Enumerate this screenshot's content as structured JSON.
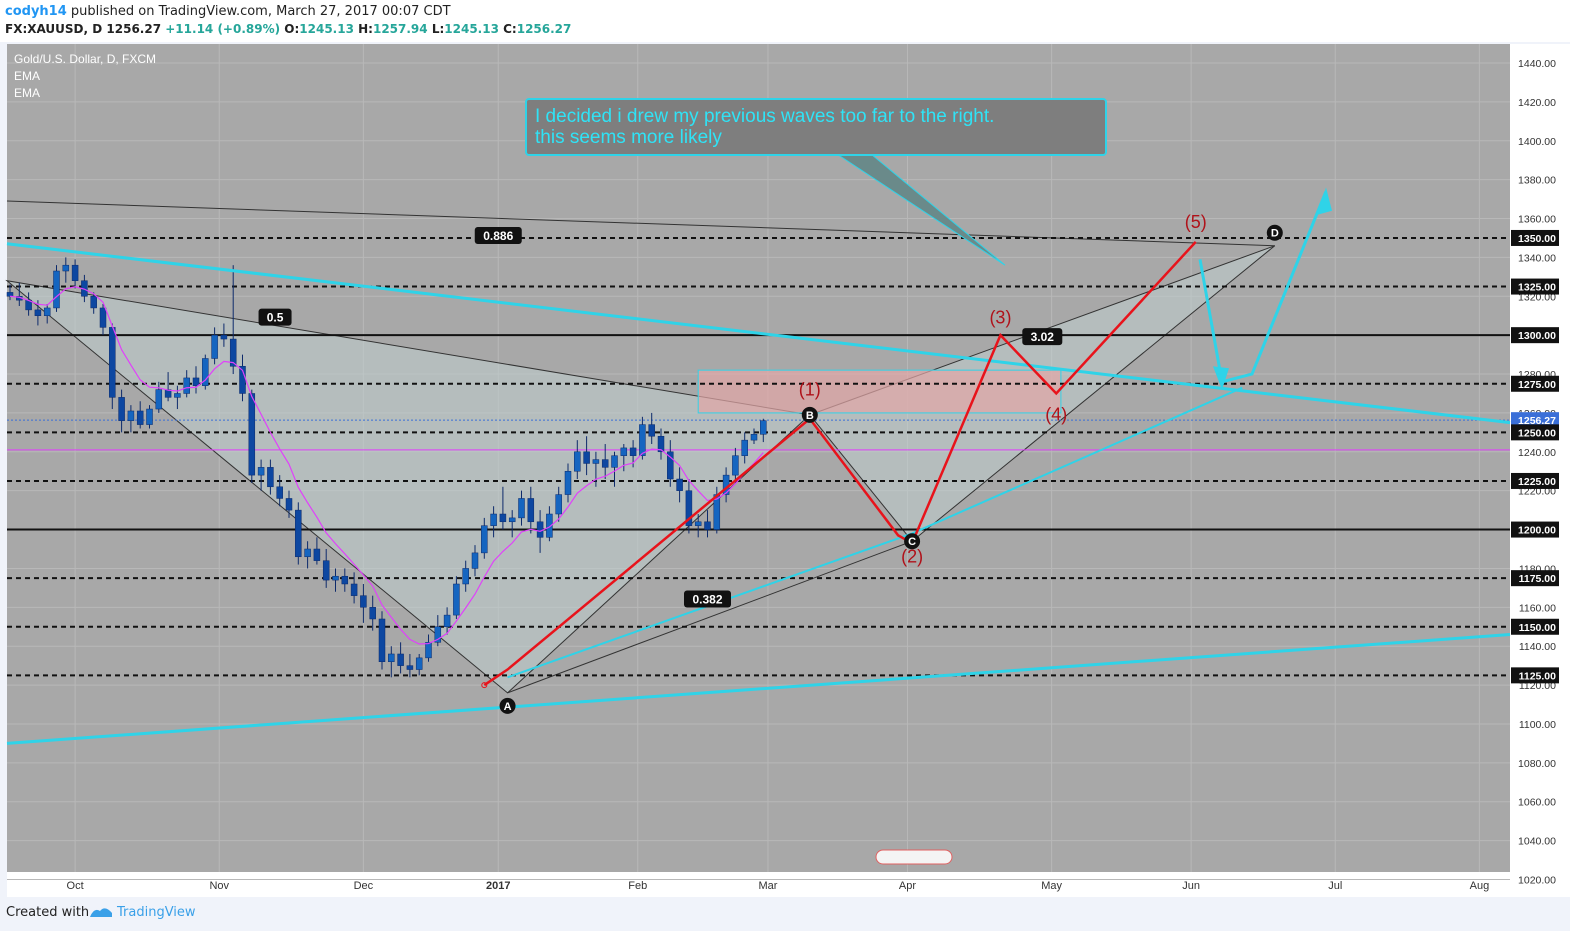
{
  "header": {
    "author": "codyh14",
    "published_text": "published on TradingView.com, March 27, 2017 00:07 CDT",
    "symbol": "FX:XAUUSD, D",
    "last": "1256.27",
    "change": "+11.14 (+0.89%)",
    "o_label": "O:",
    "o_value": "1245.13",
    "h_label": "H:",
    "h_value": "1257.94",
    "l_label": "L:",
    "l_value": "1245.13",
    "c_label": "C:",
    "c_value": "1256.27"
  },
  "legend": {
    "instrument": "Gold/U.S. Dollar, D, FXCM",
    "ind1": "EMA",
    "ind2": "EMA"
  },
  "annotation": {
    "line1": "I decided i drew my previous waves too far to the right.",
    "line2": "this seems more likely"
  },
  "footer": {
    "created_with": "Created with",
    "brand": "TradingView"
  },
  "colors": {
    "chart_bg": "#a8a8a8",
    "candle_up": "#1565c0",
    "candle_down": "#1565c0",
    "wave_red": "#e8131b",
    "trend_cyan": "#2fd3e8",
    "ema_magenta": "#e040fb"
  },
  "chart_data": {
    "type": "candlestick",
    "title": "Gold/U.S. Dollar, D, FXCM",
    "y_axis_ticks": [
      "1440.00",
      "1420.00",
      "1400.00",
      "1380.00",
      "1360.00",
      "1340.00",
      "1320.00",
      "1300.00",
      "1280.00",
      "1260.00",
      "1240.00",
      "1220.00",
      "1200.00",
      "1180.00",
      "1160.00",
      "1140.00",
      "1120.00",
      "1100.00",
      "1080.00",
      "1060.00",
      "1040.00",
      "1020.00"
    ],
    "y_axis_tick_values": [
      1440,
      1420,
      1400,
      1380,
      1360,
      1340,
      1320,
      1300,
      1280,
      1260,
      1240,
      1220,
      1200,
      1180,
      1160,
      1140,
      1120,
      1100,
      1080,
      1060,
      1040,
      1020
    ],
    "ylim": [
      1014,
      1454
    ],
    "x_axis_labels": [
      "Oct",
      "Nov",
      "Dec",
      "2017",
      "Feb",
      "Mar",
      "Apr",
      "May",
      "Jun",
      "Jul",
      "Aug"
    ],
    "x_axis_day_index": [
      14,
      45,
      76,
      105,
      135,
      163,
      193,
      224,
      254,
      285,
      316
    ],
    "level_labels": [
      "1350.00",
      "1325.00",
      "1300.00",
      "1275.00",
      "1256.27",
      "1250.00",
      "1225.00",
      "1200.00",
      "1175.00",
      "1150.00",
      "1125.00"
    ],
    "levels": [
      {
        "price": 1350,
        "style": "dashed"
      },
      {
        "price": 1325,
        "style": "dashed"
      },
      {
        "price": 1300,
        "style": "solid"
      },
      {
        "price": 1275,
        "style": "dashed"
      },
      {
        "price": 1250,
        "style": "dashed"
      },
      {
        "price": 1225,
        "style": "dashed"
      },
      {
        "price": 1200,
        "style": "solid"
      },
      {
        "price": 1175,
        "style": "dashed"
      },
      {
        "price": 1150,
        "style": "dashed"
      },
      {
        "price": 1125,
        "style": "dashed"
      }
    ],
    "last_price": 1256.27,
    "fib_labels": [
      {
        "text": "0.886",
        "day": 105,
        "price": 1351
      },
      {
        "text": "0.5",
        "day": 57,
        "price": 1309
      },
      {
        "text": "3.02",
        "day": 222,
        "price": 1299
      },
      {
        "text": "0.382",
        "day": 150,
        "price": 1164
      }
    ],
    "pattern_points": [
      {
        "text": "A",
        "day": 107,
        "price": 1116
      },
      {
        "text": "B",
        "day": 172,
        "price": 1259
      },
      {
        "text": "C",
        "day": 194,
        "price": 1194
      },
      {
        "text": "D",
        "day": 272,
        "price": 1346
      }
    ],
    "wave_labels": [
      {
        "text": "(1)",
        "day": 172,
        "price": 1269
      },
      {
        "text": "(2)",
        "day": 194,
        "price": 1183
      },
      {
        "text": "(3)",
        "day": 213,
        "price": 1306
      },
      {
        "text": "(4)",
        "day": 225,
        "price": 1256
      },
      {
        "text": "(5)",
        "day": 255,
        "price": 1355
      }
    ],
    "wave_path": [
      {
        "day": 102,
        "price": 1120
      },
      {
        "day": 107,
        "price": 1128
      },
      {
        "day": 172,
        "price": 1257
      },
      {
        "day": 191,
        "price": 1197
      },
      {
        "day": 194,
        "price": 1193
      },
      {
        "day": 213,
        "price": 1300
      },
      {
        "day": 225,
        "price": 1270
      },
      {
        "day": 255,
        "price": 1348
      }
    ],
    "candles_approx": [
      [
        0,
        1322,
        1326,
        1318,
        1320
      ],
      [
        2,
        1320,
        1327,
        1315,
        1318
      ],
      [
        4,
        1318,
        1322,
        1310,
        1313
      ],
      [
        6,
        1313,
        1318,
        1305,
        1310
      ],
      [
        8,
        1310,
        1316,
        1306,
        1314
      ],
      [
        10,
        1314,
        1336,
        1312,
        1333
      ],
      [
        12,
        1333,
        1340,
        1327,
        1336
      ],
      [
        14,
        1336,
        1339,
        1324,
        1328
      ],
      [
        16,
        1328,
        1331,
        1317,
        1320
      ],
      [
        18,
        1320,
        1322,
        1311,
        1314
      ],
      [
        20,
        1314,
        1316,
        1300,
        1304
      ],
      [
        22,
        1304,
        1306,
        1262,
        1268
      ],
      [
        24,
        1268,
        1272,
        1250,
        1256
      ],
      [
        26,
        1256,
        1264,
        1250,
        1261
      ],
      [
        28,
        1261,
        1266,
        1252,
        1254
      ],
      [
        30,
        1254,
        1264,
        1252,
        1262
      ],
      [
        32,
        1262,
        1276,
        1260,
        1272
      ],
      [
        34,
        1272,
        1281,
        1266,
        1268
      ],
      [
        36,
        1268,
        1274,
        1262,
        1270
      ],
      [
        38,
        1270,
        1282,
        1268,
        1278
      ],
      [
        40,
        1278,
        1284,
        1270,
        1274
      ],
      [
        42,
        1274,
        1290,
        1272,
        1288
      ],
      [
        44,
        1288,
        1304,
        1285,
        1300
      ],
      [
        46,
        1300,
        1306,
        1294,
        1298
      ],
      [
        48,
        1298,
        1336,
        1280,
        1284
      ],
      [
        50,
        1284,
        1290,
        1266,
        1270
      ],
      [
        52,
        1270,
        1272,
        1224,
        1228
      ],
      [
        54,
        1228,
        1236,
        1220,
        1232
      ],
      [
        56,
        1232,
        1236,
        1218,
        1222
      ],
      [
        58,
        1222,
        1228,
        1212,
        1216
      ],
      [
        60,
        1216,
        1220,
        1206,
        1210
      ],
      [
        62,
        1210,
        1214,
        1182,
        1186
      ],
      [
        64,
        1186,
        1194,
        1180,
        1190
      ],
      [
        66,
        1190,
        1196,
        1182,
        1184
      ],
      [
        68,
        1184,
        1190,
        1170,
        1174
      ],
      [
        70,
        1174,
        1180,
        1168,
        1176
      ],
      [
        72,
        1176,
        1180,
        1168,
        1172
      ],
      [
        74,
        1172,
        1178,
        1162,
        1166
      ],
      [
        76,
        1166,
        1172,
        1152,
        1160
      ],
      [
        78,
        1160,
        1166,
        1148,
        1154
      ],
      [
        80,
        1154,
        1158,
        1128,
        1132
      ],
      [
        82,
        1132,
        1140,
        1124,
        1136
      ],
      [
        84,
        1136,
        1142,
        1126,
        1130
      ],
      [
        86,
        1130,
        1136,
        1124,
        1128
      ],
      [
        88,
        1128,
        1136,
        1125,
        1134
      ],
      [
        90,
        1134,
        1146,
        1132,
        1142
      ],
      [
        92,
        1142,
        1156,
        1140,
        1150
      ],
      [
        94,
        1150,
        1160,
        1146,
        1156
      ],
      [
        96,
        1156,
        1176,
        1154,
        1172
      ],
      [
        98,
        1172,
        1184,
        1168,
        1180
      ],
      [
        100,
        1180,
        1192,
        1176,
        1188
      ],
      [
        102,
        1188,
        1206,
        1185,
        1202
      ],
      [
        104,
        1202,
        1212,
        1196,
        1208
      ],
      [
        106,
        1208,
        1222,
        1200,
        1204
      ],
      [
        108,
        1204,
        1210,
        1196,
        1206
      ],
      [
        110,
        1206,
        1220,
        1202,
        1216
      ],
      [
        112,
        1216,
        1222,
        1198,
        1204
      ],
      [
        114,
        1204,
        1210,
        1188,
        1196
      ],
      [
        116,
        1196,
        1212,
        1194,
        1208
      ],
      [
        118,
        1208,
        1222,
        1204,
        1218
      ],
      [
        120,
        1218,
        1234,
        1214,
        1230
      ],
      [
        122,
        1230,
        1246,
        1226,
        1240
      ],
      [
        124,
        1240,
        1248,
        1228,
        1234
      ],
      [
        126,
        1234,
        1240,
        1222,
        1236
      ],
      [
        128,
        1236,
        1244,
        1226,
        1232
      ],
      [
        130,
        1232,
        1240,
        1222,
        1238
      ],
      [
        132,
        1238,
        1244,
        1230,
        1242
      ],
      [
        134,
        1242,
        1246,
        1232,
        1238
      ],
      [
        136,
        1238,
        1258,
        1236,
        1254
      ],
      [
        138,
        1254,
        1260,
        1244,
        1248
      ],
      [
        140,
        1248,
        1252,
        1236,
        1240
      ],
      [
        142,
        1240,
        1246,
        1222,
        1226
      ],
      [
        144,
        1226,
        1232,
        1214,
        1220
      ],
      [
        146,
        1220,
        1226,
        1198,
        1202
      ],
      [
        148,
        1202,
        1208,
        1196,
        1204
      ],
      [
        150,
        1204,
        1210,
        1196,
        1200
      ],
      [
        152,
        1200,
        1222,
        1198,
        1218
      ],
      [
        154,
        1218,
        1232,
        1214,
        1228
      ],
      [
        156,
        1228,
        1242,
        1224,
        1238
      ],
      [
        158,
        1238,
        1250,
        1234,
        1246
      ],
      [
        160,
        1246,
        1252,
        1244,
        1249
      ],
      [
        162,
        1249,
        1257,
        1245,
        1256
      ]
    ]
  }
}
